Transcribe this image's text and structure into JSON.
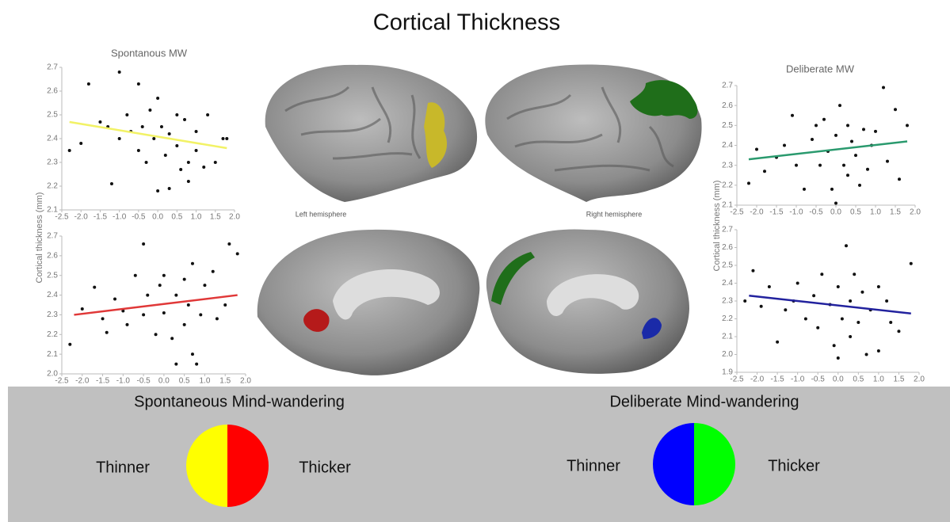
{
  "title": "Cortical Thickness",
  "hemispheres": [
    "Left hemisphere",
    "Right hemisphere"
  ],
  "legend": [
    {
      "title": "Spontaneous Mind-wandering",
      "labels": [
        "Thinner",
        "Thicker"
      ],
      "colors": [
        "#ffff00",
        "#ff0000"
      ]
    },
    {
      "title": "Deliberate Mind-wandering",
      "labels": [
        "Thinner",
        "Thicker"
      ],
      "colors": [
        "#0000ff",
        "#00ff00"
      ]
    }
  ],
  "chart_data": [
    {
      "type": "scatter",
      "title": "Spontanous MW",
      "ylabel": "Cortical thickness (mm)",
      "x": [
        -2.3,
        -2.0,
        -1.8,
        -1.5,
        -1.3,
        -1.2,
        -1.0,
        -1.0,
        -0.8,
        -0.7,
        -0.5,
        -0.5,
        -0.4,
        -0.3,
        -0.2,
        -0.1,
        0.0,
        0.0,
        0.1,
        0.2,
        0.3,
        0.3,
        0.5,
        0.5,
        0.6,
        0.7,
        0.8,
        0.8,
        1.0,
        1.0,
        1.2,
        1.3,
        1.5,
        1.7,
        1.8
      ],
      "y": [
        2.35,
        2.38,
        2.63,
        2.47,
        2.45,
        2.21,
        2.68,
        2.4,
        2.5,
        2.43,
        2.63,
        2.35,
        2.45,
        2.3,
        2.52,
        2.4,
        2.57,
        2.18,
        2.45,
        2.33,
        2.19,
        2.42,
        2.5,
        2.37,
        2.27,
        2.48,
        2.3,
        2.22,
        2.43,
        2.35,
        2.28,
        2.5,
        2.3,
        2.4,
        2.4
      ],
      "fit": {
        "x": [
          -2.3,
          1.8
        ],
        "y": [
          2.47,
          2.36
        ],
        "color": "#f2f266"
      },
      "xlim": [
        -2.5,
        2.0
      ],
      "ylim": [
        2.1,
        2.7
      ],
      "xticks": [
        -2.5,
        {
          "value": -2,
          "label": "-2.0"
        },
        -1.5,
        {
          "value": -1,
          "label": "-1.0"
        },
        -0.5,
        {
          "value": 0,
          "label": "0.0"
        },
        0.5,
        {
          "value": 1,
          "label": "1.0"
        },
        1.5,
        {
          "value": 2,
          "label": "2.0"
        }
      ],
      "yticks": [
        2.1,
        2.2,
        2.3,
        2.4,
        2.5,
        2.6,
        2.7
      ]
    },
    {
      "type": "scatter",
      "x": [
        -2.3,
        -2.0,
        -1.7,
        -1.5,
        -1.4,
        -1.2,
        -1.0,
        -0.9,
        -0.7,
        -0.5,
        -0.5,
        -0.4,
        -0.2,
        -0.1,
        0.0,
        0.0,
        0.2,
        0.3,
        0.3,
        0.5,
        0.5,
        0.6,
        0.7,
        0.7,
        0.8,
        0.9,
        1.0,
        1.2,
        1.3,
        1.5,
        1.6,
        1.8
      ],
      "y": [
        2.15,
        2.33,
        2.44,
        2.28,
        2.21,
        2.38,
        2.32,
        2.25,
        2.5,
        2.66,
        2.3,
        2.4,
        2.2,
        2.45,
        2.5,
        2.31,
        2.18,
        2.05,
        2.4,
        2.48,
        2.25,
        2.35,
        2.56,
        2.1,
        2.05,
        2.3,
        2.45,
        2.52,
        2.28,
        2.35,
        2.66,
        2.61
      ],
      "fit": {
        "x": [
          -2.2,
          1.8
        ],
        "y": [
          2.3,
          2.4
        ],
        "color": "#e03838"
      },
      "xlim": [
        -2.5,
        2.0
      ],
      "ylim": [
        2.0,
        2.7
      ],
      "xticks": [
        -2.5,
        {
          "value": -2,
          "label": "-2.0"
        },
        -1.5,
        {
          "value": -1,
          "label": "-1.0"
        },
        -0.5,
        {
          "value": 0,
          "label": "0.0"
        },
        0.5,
        {
          "value": 1,
          "label": "1.0"
        },
        1.5,
        {
          "value": 2,
          "label": "2.0"
        }
      ],
      "yticks": [
        {
          "value": 2,
          "label": "2.0"
        },
        2.1,
        2.2,
        2.3,
        2.4,
        2.5,
        2.6,
        2.7
      ]
    },
    {
      "type": "scatter",
      "title": "Deliberate MW",
      "ylabel": "Cortical thickness (mm)",
      "x": [
        -2.2,
        -2.0,
        -1.8,
        -1.5,
        -1.3,
        -1.1,
        -1.0,
        -0.8,
        -0.6,
        -0.5,
        -0.4,
        -0.3,
        -0.2,
        -0.1,
        0.0,
        0.0,
        0.1,
        0.2,
        0.3,
        0.3,
        0.4,
        0.5,
        0.6,
        0.7,
        0.8,
        0.9,
        1.0,
        1.2,
        1.3,
        1.5,
        1.6,
        1.8
      ],
      "y": [
        2.21,
        2.38,
        2.27,
        2.34,
        2.4,
        2.55,
        2.3,
        2.18,
        2.43,
        2.5,
        2.3,
        2.53,
        2.37,
        2.18,
        2.45,
        2.11,
        2.6,
        2.3,
        2.5,
        2.25,
        2.42,
        2.35,
        2.2,
        2.48,
        2.28,
        2.4,
        2.47,
        2.69,
        2.32,
        2.58,
        2.23,
        2.5
      ],
      "fit": {
        "x": [
          -2.2,
          1.8
        ],
        "y": [
          2.33,
          2.42
        ],
        "color": "#2a9a6e"
      },
      "xlim": [
        -2.5,
        2.0
      ],
      "ylim": [
        2.1,
        2.7
      ],
      "xticks": [
        -2.5,
        {
          "value": -2,
          "label": "-2.0"
        },
        -1.5,
        {
          "value": -1,
          "label": "-1.0"
        },
        -0.5,
        {
          "value": 0,
          "label": "0.0"
        },
        0.5,
        {
          "value": 1,
          "label": "1.0"
        },
        1.5,
        {
          "value": 2,
          "label": "2.0"
        }
      ],
      "yticks": [
        2.1,
        2.2,
        2.3,
        2.4,
        2.5,
        2.6,
        2.7
      ]
    },
    {
      "type": "scatter",
      "x": [
        -2.3,
        -2.1,
        -1.9,
        -1.7,
        -1.5,
        -1.3,
        -1.1,
        -1.0,
        -0.8,
        -0.6,
        -0.5,
        -0.4,
        -0.2,
        -0.1,
        0.0,
        0.0,
        0.1,
        0.2,
        0.3,
        0.3,
        0.4,
        0.5,
        0.6,
        0.7,
        0.8,
        1.0,
        1.0,
        1.2,
        1.3,
        1.5,
        1.8
      ],
      "y": [
        2.3,
        2.47,
        2.27,
        2.38,
        2.07,
        2.25,
        2.3,
        2.4,
        2.2,
        2.33,
        2.15,
        2.45,
        2.28,
        2.05,
        2.38,
        1.98,
        2.2,
        2.61,
        2.3,
        2.1,
        2.45,
        2.18,
        2.35,
        2.0,
        2.25,
        2.38,
        2.02,
        2.3,
        2.18,
        2.13,
        2.51
      ],
      "fit": {
        "x": [
          -2.2,
          1.8
        ],
        "y": [
          2.33,
          2.23
        ],
        "color": "#22229e"
      },
      "xlim": [
        -2.5,
        2.0
      ],
      "ylim": [
        1.9,
        2.7
      ],
      "xticks": [
        -2.5,
        {
          "value": -2,
          "label": "-2.0"
        },
        -1.5,
        {
          "value": -1,
          "label": "-1.0"
        },
        -0.5,
        {
          "value": 0,
          "label": "0.0"
        },
        0.5,
        {
          "value": 1,
          "label": "1.0"
        },
        1.5,
        {
          "value": 2,
          "label": "2.0"
        }
      ],
      "yticks": [
        1.9,
        {
          "value": 2,
          "label": "2.0"
        },
        2.1,
        2.2,
        2.3,
        2.4,
        2.5,
        2.6,
        2.7
      ]
    }
  ]
}
